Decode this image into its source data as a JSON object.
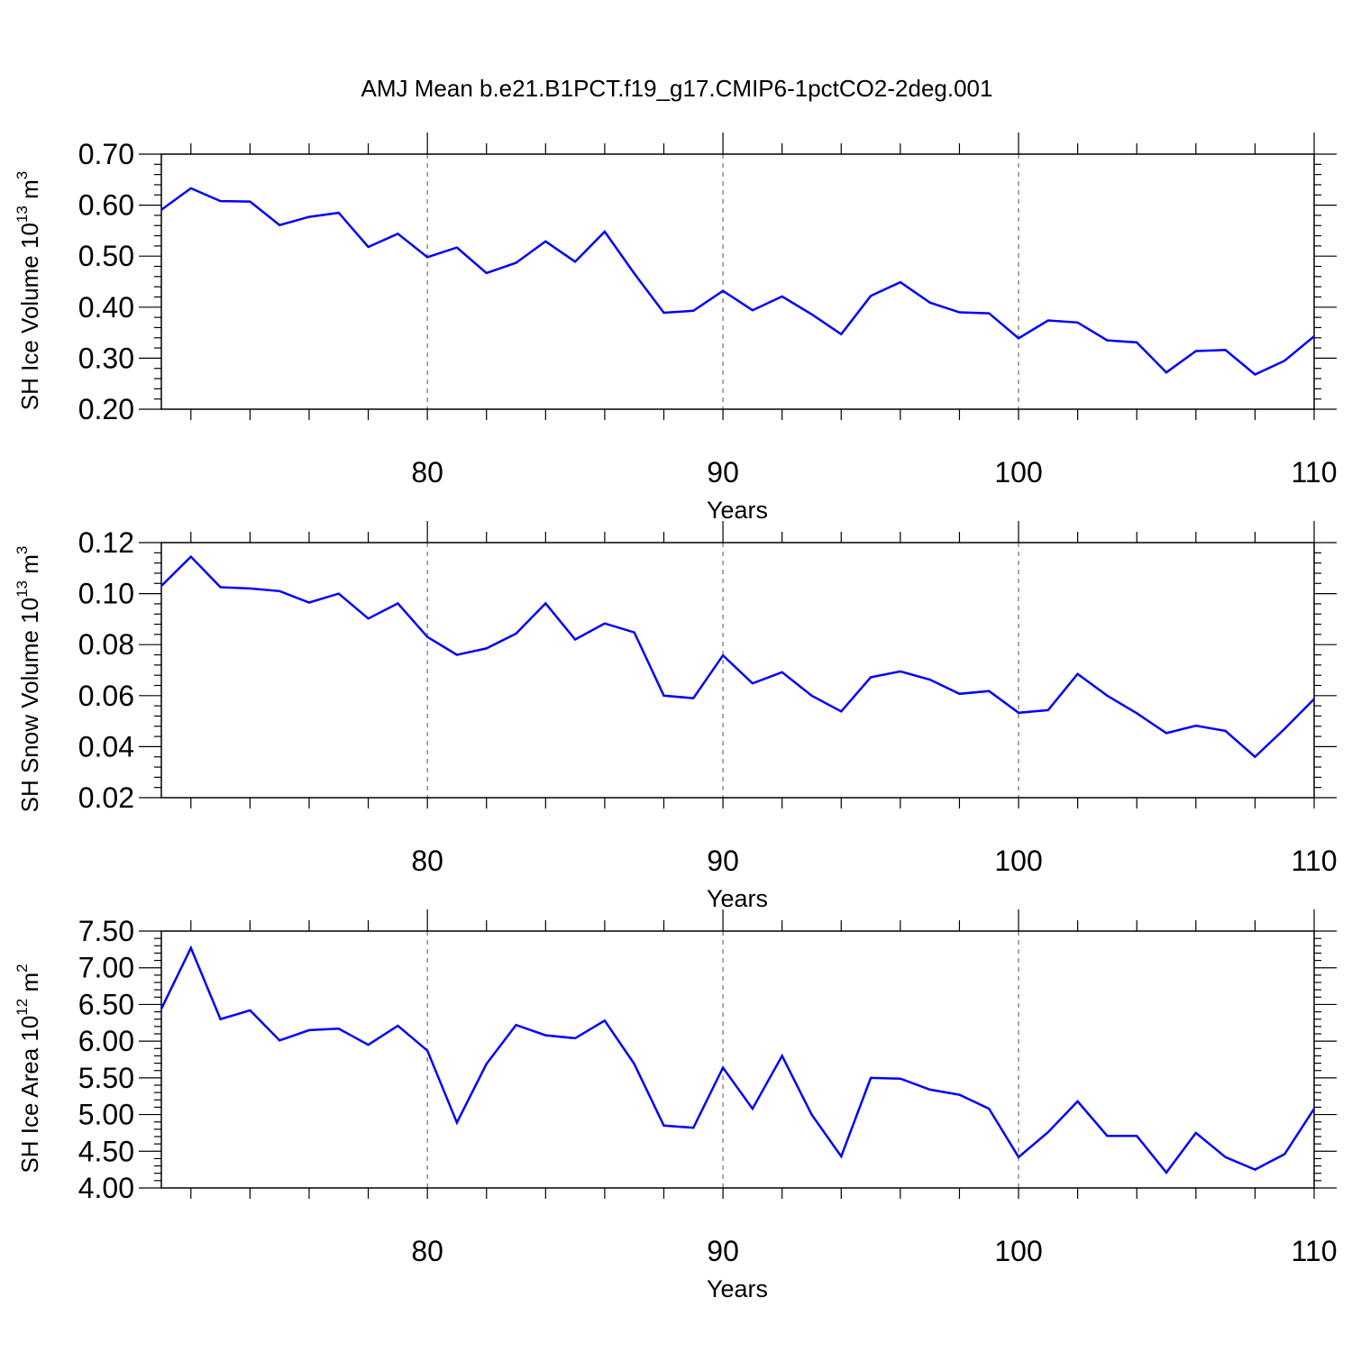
{
  "title": "AMJ Mean b.e21.B1PCT.f19_g17.CMIP6-1pctCO2-2deg.001",
  "chart_data": [
    {
      "type": "line",
      "ylabel": "SH Ice Volume 10",
      "ylabel_exp": "13",
      "ylabel_unit": " m",
      "ylabel_unit_exp": "3",
      "xlabel": "Years",
      "xlim": [
        71,
        110
      ],
      "ylim": [
        0.2,
        0.7
      ],
      "yticks": [
        "0.20",
        "0.30",
        "0.40",
        "0.50",
        "0.60",
        "0.70"
      ],
      "xticks": [
        "80",
        "90",
        "100",
        "110"
      ],
      "grid": "dashed at x ticks",
      "line_color": "#0000ff",
      "x": [
        71,
        72,
        73,
        74,
        75,
        76,
        77,
        78,
        79,
        80,
        81,
        82,
        83,
        84,
        85,
        86,
        87,
        88,
        89,
        90,
        91,
        92,
        93,
        94,
        95,
        96,
        97,
        98,
        99,
        100,
        101,
        102,
        103,
        104,
        105,
        106,
        107,
        108,
        109,
        110
      ],
      "values": [
        0.591,
        0.633,
        0.608,
        0.607,
        0.561,
        0.577,
        0.585,
        0.518,
        0.544,
        0.498,
        0.517,
        0.467,
        0.487,
        0.529,
        0.489,
        0.548,
        0.466,
        0.389,
        0.393,
        0.432,
        0.394,
        0.421,
        0.386,
        0.347,
        0.422,
        0.449,
        0.409,
        0.39,
        0.388,
        0.339,
        0.374,
        0.37,
        0.335,
        0.331,
        0.272,
        0.314,
        0.316,
        0.268,
        0.295,
        0.343
      ]
    },
    {
      "type": "line",
      "ylabel": "SH Snow Volume 10",
      "ylabel_exp": "13",
      "ylabel_unit": " m",
      "ylabel_unit_exp": "3",
      "xlabel": "Years",
      "xlim": [
        71,
        110
      ],
      "ylim": [
        0.02,
        0.12
      ],
      "yticks": [
        "0.02",
        "0.04",
        "0.06",
        "0.08",
        "0.10",
        "0.12"
      ],
      "xticks": [
        "80",
        "90",
        "100",
        "110"
      ],
      "grid": "dashed at x ticks",
      "line_color": "#0000ff",
      "x": [
        71,
        72,
        73,
        74,
        75,
        76,
        77,
        78,
        79,
        80,
        81,
        82,
        83,
        84,
        85,
        86,
        87,
        88,
        89,
        90,
        91,
        92,
        93,
        94,
        95,
        96,
        97,
        98,
        99,
        100,
        101,
        102,
        103,
        104,
        105,
        106,
        107,
        108,
        109,
        110
      ],
      "values": [
        0.103,
        0.1145,
        0.1025,
        0.102,
        0.101,
        0.0965,
        0.1,
        0.0902,
        0.0962,
        0.083,
        0.076,
        0.0785,
        0.0843,
        0.0962,
        0.082,
        0.0883,
        0.0848,
        0.06,
        0.059,
        0.0758,
        0.0648,
        0.0692,
        0.06,
        0.0538,
        0.0672,
        0.0695,
        0.0663,
        0.0607,
        0.0618,
        0.0533,
        0.0543,
        0.0685,
        0.06,
        0.0531,
        0.0453,
        0.0482,
        0.0462,
        0.036,
        0.047,
        0.0587
      ]
    },
    {
      "type": "line",
      "ylabel": "SH Ice Area 10",
      "ylabel_exp": "12",
      "ylabel_unit": " m",
      "ylabel_unit_exp": "2",
      "xlabel": "Years",
      "xlim": [
        71,
        110
      ],
      "ylim": [
        4.0,
        7.5
      ],
      "yticks": [
        "4.00",
        "4.50",
        "5.00",
        "5.50",
        "6.00",
        "6.50",
        "7.00",
        "7.50"
      ],
      "xticks": [
        "80",
        "90",
        "100",
        "110"
      ],
      "grid": "dashed at x ticks",
      "line_color": "#0000ff",
      "x": [
        71,
        72,
        73,
        74,
        75,
        76,
        77,
        78,
        79,
        80,
        81,
        82,
        83,
        84,
        85,
        86,
        87,
        88,
        89,
        90,
        91,
        92,
        93,
        94,
        95,
        96,
        97,
        98,
        99,
        100,
        101,
        102,
        103,
        104,
        105,
        106,
        107,
        108,
        109,
        110
      ],
      "values": [
        6.44,
        7.27,
        6.3,
        6.42,
        6.01,
        6.15,
        6.17,
        5.95,
        6.21,
        5.87,
        4.89,
        5.69,
        6.22,
        6.08,
        6.04,
        6.28,
        5.69,
        4.85,
        4.82,
        5.64,
        5.08,
        5.8,
        5.0,
        4.43,
        5.5,
        5.49,
        5.34,
        5.27,
        5.08,
        4.42,
        4.76,
        5.18,
        4.71,
        4.71,
        4.21,
        4.75,
        4.42,
        4.25,
        4.46,
        5.08
      ]
    }
  ]
}
